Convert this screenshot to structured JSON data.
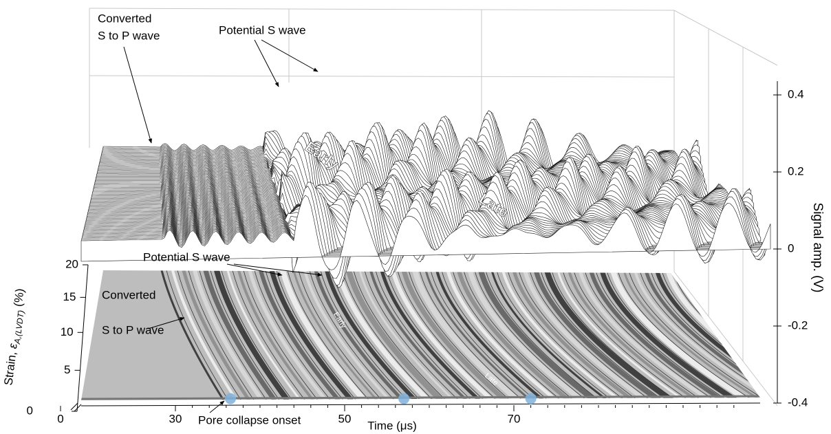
{
  "chart_data": {
    "type": "waterfall",
    "x_label": "Time (μs)",
    "y_label": {
      "text": "Strain, ",
      "symbol": "ε",
      "subscript": "A,(LVDT)",
      "unit": " (%)"
    },
    "z_label": "Signal amp. (V)",
    "xlim": [
      19,
      99
    ],
    "xticks": [
      0,
      30,
      50,
      70
    ],
    "ylim": [
      0,
      20
    ],
    "yticks": [
      0,
      5,
      10,
      15,
      20
    ],
    "zlim": [
      -0.4,
      0.4
    ],
    "zticks": [
      -0.4,
      -0.2,
      0,
      0.2,
      0.4
    ],
    "annotations": {
      "converted": [
        "Converted",
        "S to P wave"
      ],
      "s_wave": "Potential S wave",
      "early": "Early",
      "late": "Late",
      "pore_collapse": "Pore collapse onset"
    },
    "pore_collapse": {
      "time": [
        36.5,
        57,
        72
      ],
      "strain": [
        1.5,
        1.5,
        1.5
      ],
      "color": "#7fb2dc"
    }
  }
}
